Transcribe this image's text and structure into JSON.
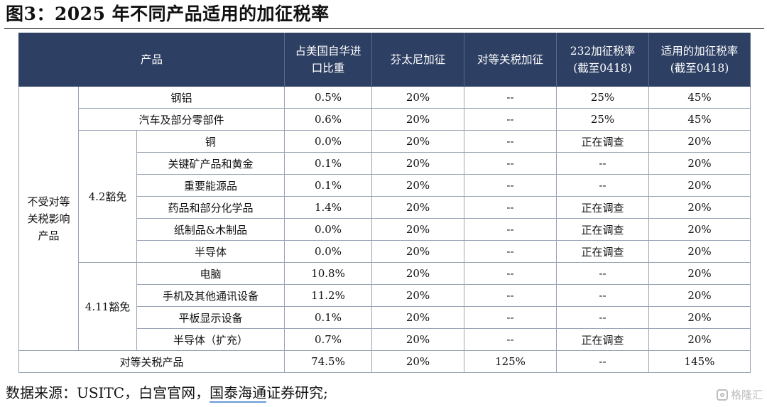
{
  "title": "图3：2025 年不同产品适用的加征税率",
  "headers": {
    "product": "产品",
    "import_share": "占美国自华进\n口比重",
    "fentanyl": "芬太尼加征",
    "reciprocal": "对等关税加征",
    "s232": "232加征税率\n(截至0418)",
    "applicable": "适用的加征税率\n(截至0418)"
  },
  "groups": {
    "exempt": "不受对等\n关税影响\n产品",
    "exempt_42": "4.2豁免",
    "exempt_411": "4.11豁免"
  },
  "rows": [
    {
      "name": "钢铝",
      "share": "0.5%",
      "fentanyl": "20%",
      "reciprocal": "--",
      "s232": "25%",
      "applicable": "45%"
    },
    {
      "name": "汽车及部分零部件",
      "share": "0.6%",
      "fentanyl": "20%",
      "reciprocal": "--",
      "s232": "25%",
      "applicable": "45%"
    },
    {
      "name": "铜",
      "share": "0.0%",
      "fentanyl": "20%",
      "reciprocal": "--",
      "s232": "正在调查",
      "applicable": "20%"
    },
    {
      "name": "关键矿产品和黄金",
      "share": "0.1%",
      "fentanyl": "20%",
      "reciprocal": "--",
      "s232": "--",
      "applicable": "20%"
    },
    {
      "name": "重要能源品",
      "share": "0.1%",
      "fentanyl": "20%",
      "reciprocal": "--",
      "s232": "--",
      "applicable": "20%"
    },
    {
      "name": "药品和部分化学品",
      "share": "1.4%",
      "fentanyl": "20%",
      "reciprocal": "--",
      "s232": "正在调查",
      "applicable": "20%"
    },
    {
      "name": "纸制品&木制品",
      "share": "0.0%",
      "fentanyl": "20%",
      "reciprocal": "--",
      "s232": "正在调查",
      "applicable": "20%"
    },
    {
      "name": "半导体",
      "share": "0.0%",
      "fentanyl": "20%",
      "reciprocal": "--",
      "s232": "正在调查",
      "applicable": "20%"
    },
    {
      "name": "电脑",
      "share": "10.8%",
      "fentanyl": "20%",
      "reciprocal": "--",
      "s232": "--",
      "applicable": "20%"
    },
    {
      "name": "手机及其他通讯设备",
      "share": "11.2%",
      "fentanyl": "20%",
      "reciprocal": "--",
      "s232": "--",
      "applicable": "20%"
    },
    {
      "name": "平板显示设备",
      "share": "0.1%",
      "fentanyl": "20%",
      "reciprocal": "--",
      "s232": "--",
      "applicable": "20%"
    },
    {
      "name": "半导体（扩充）",
      "share": "0.7%",
      "fentanyl": "20%",
      "reciprocal": "--",
      "s232": "正在调查",
      "applicable": "20%"
    },
    {
      "name": "对等关税产品",
      "share": "74.5%",
      "fentanyl": "20%",
      "reciprocal": "125%",
      "s232": "--",
      "applicable": "145%"
    }
  ],
  "source": {
    "prefix": "数据来源：USITC，白宫官网，",
    "underlined": "国泰海通",
    "suffix": "证券研究;"
  },
  "watermark": "格隆汇"
}
